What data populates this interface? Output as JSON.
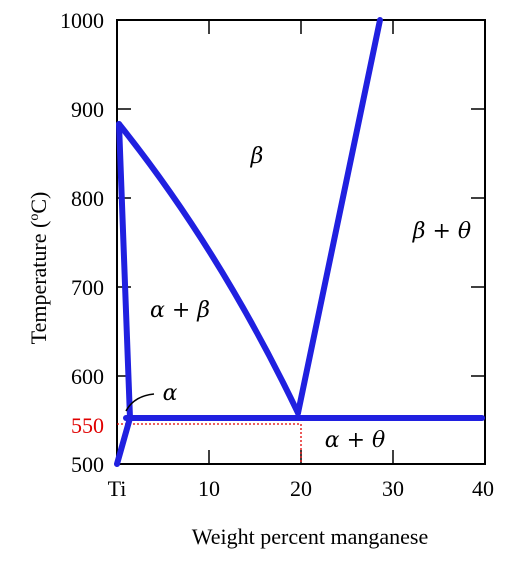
{
  "diagram": {
    "axes": {
      "x_label": "Weight percent manganese",
      "y_label": "Temperature (oC)",
      "y_label_base": "Temperature (",
      "y_label_sup": "o",
      "y_label_end": "C)",
      "x_ticks": [
        "Ti",
        "10",
        "20",
        "30",
        "40"
      ],
      "y_ticks": [
        "500",
        "600",
        "700",
        "800",
        "900",
        "1000"
      ],
      "highlight_tick": "550",
      "highlight_color": "#e00000"
    },
    "phases": {
      "beta": "β",
      "beta_theta": "β + θ",
      "alpha_beta": "α + β",
      "alpha": "α",
      "alpha_theta": "α + θ"
    },
    "line_color": "#2020e0"
  }
}
